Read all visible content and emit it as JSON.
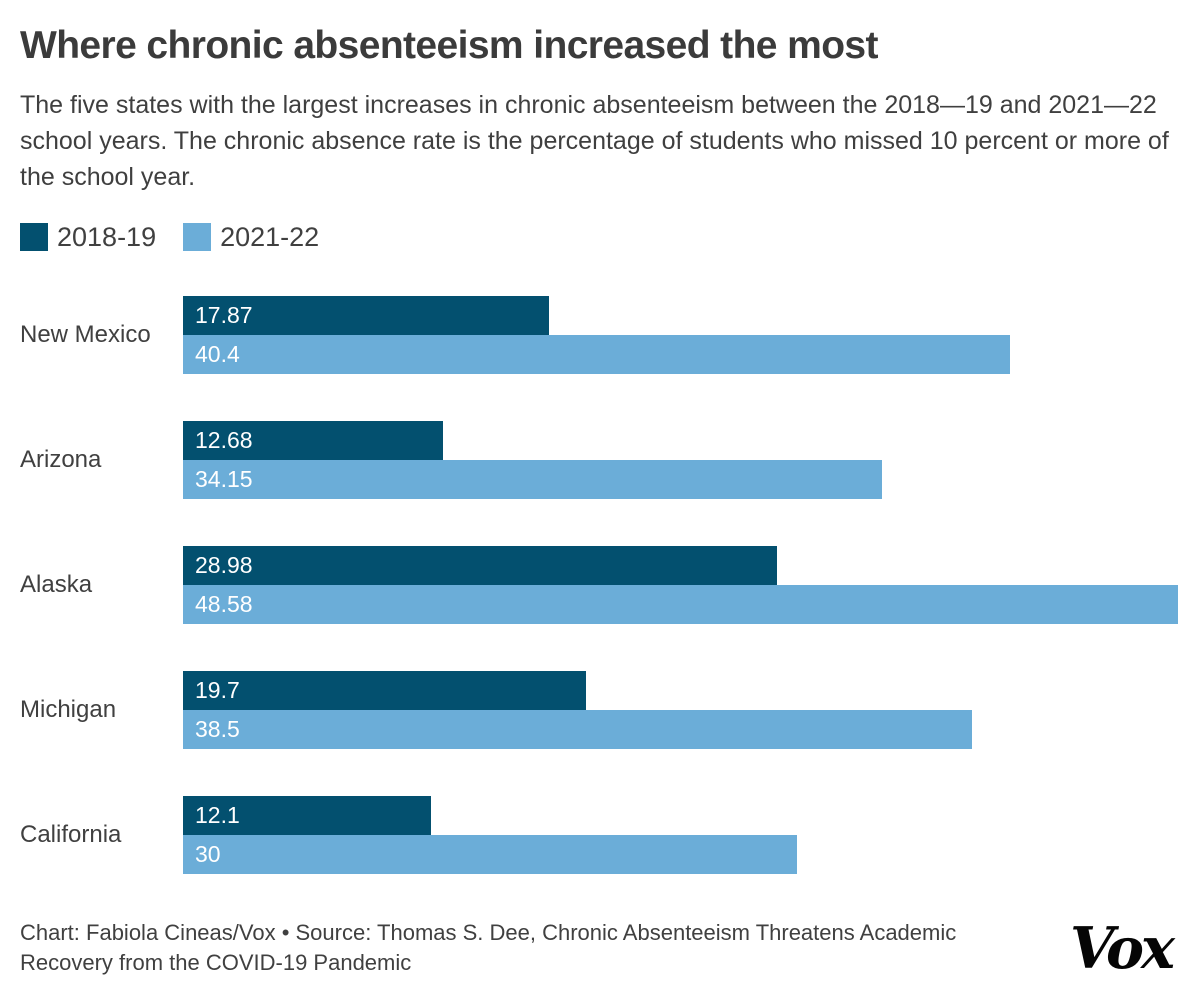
{
  "header": {
    "title": "Where chronic absenteeism increased the most",
    "subtitle": "The five states with the largest increases in chronic absenteeism between the 2018—19 and 2021—22 school years. The chronic absence rate is the percentage of students who missed 10 percent or more of the school year."
  },
  "colors": {
    "series_2018_19": "#03506f",
    "series_2021_22": "#6badd8",
    "title_text": "#3b3b3b",
    "body_text": "#3f3f3f",
    "bar_value_text": "#ffffff",
    "logo_text": "#050505"
  },
  "legend": {
    "items": [
      {
        "label": "2018-19",
        "color": "#03506f"
      },
      {
        "label": "2021-22",
        "color": "#6badd8"
      }
    ]
  },
  "chart_data": {
    "type": "bar",
    "orientation": "horizontal",
    "title": "Where chronic absenteeism increased the most",
    "categories": [
      "New Mexico",
      "Arizona",
      "Alaska",
      "Michigan",
      "California"
    ],
    "series": [
      {
        "name": "2018-19",
        "color": "#03506f",
        "values": [
          17.87,
          12.68,
          28.98,
          19.7,
          12.1
        ],
        "labels": [
          "17.87",
          "12.68",
          "28.98",
          "19.7",
          "12.1"
        ]
      },
      {
        "name": "2021-22",
        "color": "#6badd8",
        "values": [
          40.4,
          34.15,
          48.58,
          38.5,
          30
        ],
        "labels": [
          "40.4",
          "34.15",
          "48.58",
          "38.5",
          "30"
        ]
      }
    ],
    "xlim": [
      0,
      48.58
    ],
    "value_labels": "inside-start-white",
    "grid": false,
    "axes_visible": false,
    "legend_position": "top-left"
  },
  "footer": {
    "credit": "Chart: Fabiola Cineas/Vox • Source: Thomas S. Dee, Chronic Absenteeism Threatens Academic Recovery from the COVID-19 Pandemic",
    "logo": "Vox"
  }
}
